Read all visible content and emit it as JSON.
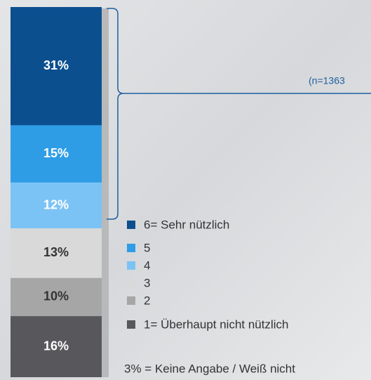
{
  "chart_data": {
    "type": "stacked_bar",
    "categories": [
      null
    ],
    "series": [
      {
        "name": "6= Sehr nützlich",
        "color": "#0b4f8f",
        "values": [
          31
        ],
        "value_labels": [
          "31%"
        ],
        "label_color": "#ffffff"
      },
      {
        "name": "5",
        "color": "#2e9de6",
        "values": [
          15
        ],
        "value_labels": [
          "15%"
        ],
        "label_color": "#ffffff"
      },
      {
        "name": "4",
        "color": "#7cc3f5",
        "values": [
          12
        ],
        "value_labels": [
          "12%"
        ],
        "label_color": "#ffffff"
      },
      {
        "name": "3",
        "color": "#d9d9d9",
        "values": [
          13
        ],
        "value_labels": [
          "13%"
        ],
        "label_color": "#333333"
      },
      {
        "name": "2",
        "color": "#a6a6a6",
        "values": [
          10
        ],
        "value_labels": [
          "10%"
        ],
        "label_color": "#333333"
      },
      {
        "name": "1= Überhaupt nicht nützlich",
        "color": "#58585c",
        "values": [
          16
        ],
        "value_labels": [
          "16%"
        ],
        "label_color": "#ffffff"
      }
    ],
    "annotation": "(n=1363",
    "note": "3% = Keine Angabe / Weiß nicht"
  }
}
